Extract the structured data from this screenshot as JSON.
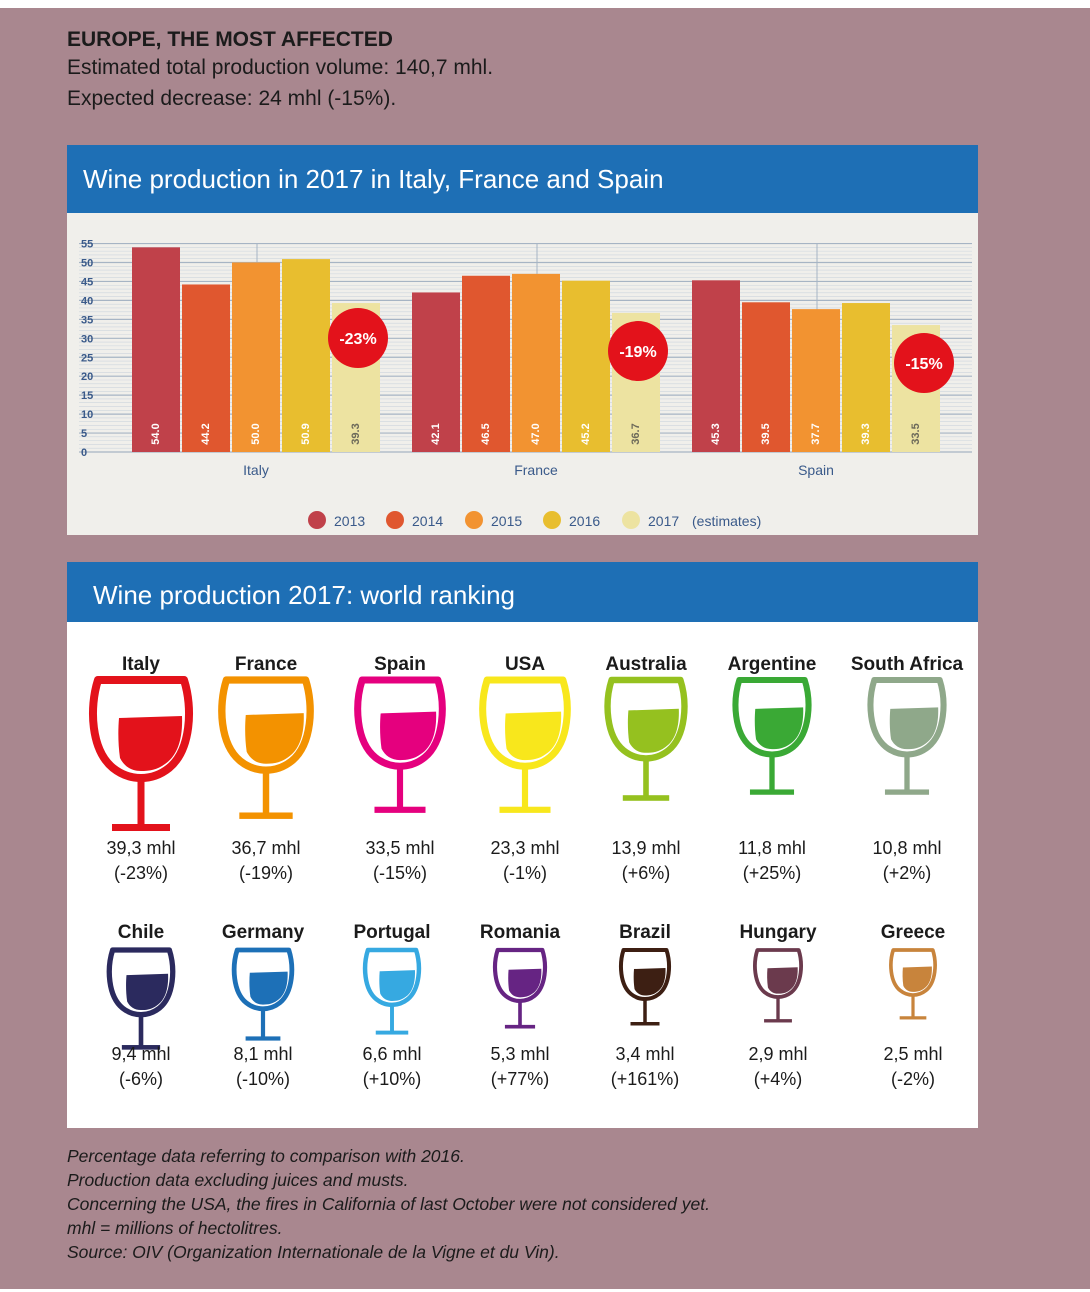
{
  "header": {
    "title": "EUROPE, THE MOST AFFECTED",
    "line1": "Estimated total production volume: 140,7 mhl.",
    "line2": "Expected decrease: 24 mhl (-15%)."
  },
  "panel1": {
    "title": "Wine production in 2017 in Italy, France and Spain"
  },
  "panel2": {
    "title": "Wine production 2017: world ranking"
  },
  "chart_data": {
    "type": "bar",
    "categories": [
      "Italy",
      "France",
      "Spain"
    ],
    "series": [
      {
        "name": "2013",
        "values": [
          54.0,
          42.1,
          45.3
        ],
        "labels": [
          "54.0",
          "42.1",
          "45.3"
        ],
        "color": "#c0414a"
      },
      {
        "name": "2014",
        "values": [
          44.2,
          46.5,
          39.5
        ],
        "labels": [
          "44.2",
          "46.5",
          "39.5"
        ],
        "color": "#e0572f"
      },
      {
        "name": "2015",
        "values": [
          50.0,
          47.0,
          37.7
        ],
        "labels": [
          "50.0",
          "47.0",
          "37.7"
        ],
        "color": "#f29331"
      },
      {
        "name": "2016",
        "values": [
          50.9,
          45.2,
          39.3
        ],
        "labels": [
          "50.9",
          "45.2",
          "39.3"
        ],
        "color": "#e8be2f"
      },
      {
        "name": "2017",
        "values": [
          39.3,
          36.7,
          33.5
        ],
        "labels": [
          "39.3",
          "36.7",
          "33.5"
        ],
        "color": "#ede3a1"
      }
    ],
    "yticks": [
      "0",
      "5",
      "10",
      "15",
      "20",
      "25",
      "30",
      "35",
      "40",
      "45",
      "50",
      "55"
    ],
    "ylim": [
      0,
      55
    ],
    "badges": [
      "-23%",
      "-19%",
      "-15%"
    ],
    "badge_color": "#e3121b",
    "legend_suffix": "(estimates)",
    "legend_position": "bottom",
    "grid": true
  },
  "ranking": [
    {
      "name": "Italy",
      "value": "39,3 mhl",
      "change": "(-23%)",
      "color": "#e3121b"
    },
    {
      "name": "France",
      "value": "36,7 mhl",
      "change": "(-19%)",
      "color": "#f39200"
    },
    {
      "name": "Spain",
      "value": "33,5 mhl",
      "change": "(-15%)",
      "color": "#e5007e"
    },
    {
      "name": "USA",
      "value": "23,3 mhl",
      "change": "(-1%)",
      "color": "#f8e71c"
    },
    {
      "name": "Australia",
      "value": "13,9 mhl",
      "change": "(+6%)",
      "color": "#95c11f"
    },
    {
      "name": "Argentine",
      "value": "11,8 mhl",
      "change": "(+25%)",
      "color": "#3aa935"
    },
    {
      "name": "South Africa",
      "value": "10,8 mhl",
      "change": "(+2%)",
      "color": "#8fa88a"
    },
    {
      "name": "Chile",
      "value": "9,4 mhl",
      "change": "(-6%)",
      "color": "#2b2a5e"
    },
    {
      "name": "Germany",
      "value": "8,1 mhl",
      "change": "(-10%)",
      "color": "#1d70b7"
    },
    {
      "name": "Portugal",
      "value": "6,6 mhl",
      "change": "(+10%)",
      "color": "#36a9e1"
    },
    {
      "name": "Romania",
      "value": "5,3 mhl",
      "change": "(+77%)",
      "color": "#662483"
    },
    {
      "name": "Brazil",
      "value": "3,4 mhl",
      "change": "(+161%)",
      "color": "#3d1f13"
    },
    {
      "name": "Hungary",
      "value": "2,9 mhl",
      "change": "(+4%)",
      "color": "#6b3a4d"
    },
    {
      "name": "Greece",
      "value": "2,5 mhl",
      "change": "(-2%)",
      "color": "#c8843c"
    }
  ],
  "footnotes": [
    "Percentage data referring to comparison with 2016.",
    "Production data excluding juices and musts.",
    "Concerning the USA, the fires in California of last October were not considered yet.",
    "mhl = millions of hectolitres.",
    "Source: OIV (Organization Internationale de la Vigne et du Vin)."
  ]
}
